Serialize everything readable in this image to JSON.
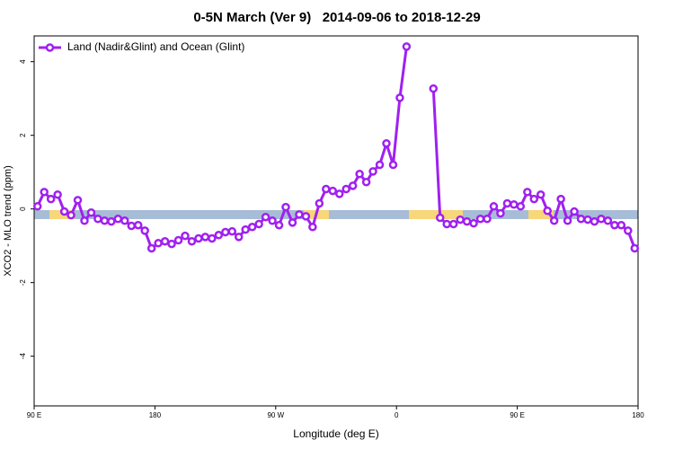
{
  "chart_data": {
    "type": "line",
    "title": "0-5N March (Ver 9)   2014-09-06 to 2018-12-29",
    "x_label": "Longitude (deg E)",
    "y_label": "XCO2 - MLO trend (ppm)",
    "xlim": [
      90,
      540
    ],
    "xticks": [
      {
        "value": 90,
        "label": "90 E"
      },
      180,
      {
        "value": 270,
        "label": "90 W"
      },
      {
        "value": 360,
        "label": "0"
      },
      {
        "value": 450,
        "label": "90 E"
      },
      {
        "value": 540,
        "label": "180"
      }
    ],
    "ylim": [
      -5.35,
      4.7
    ],
    "yticks": [
      -4,
      -2,
      0,
      2,
      4
    ],
    "legend": "top-left",
    "x": [
      92.5,
      97.5,
      102.5,
      107.5,
      112.5,
      117.5,
      122.5,
      127.5,
      132.5,
      137.5,
      142.5,
      147.5,
      152.5,
      157.5,
      162.5,
      167.5,
      172.5,
      177.5,
      182.5,
      187.5,
      192.5,
      197.5,
      202.5,
      207.5,
      212.5,
      217.5,
      222.5,
      227.5,
      232.5,
      237.5,
      242.5,
      247.5,
      252.5,
      257.5,
      262.5,
      267.5,
      272.5,
      277.5,
      282.5,
      287.5,
      292.5,
      297.5,
      302.5,
      307.5,
      312.5,
      317.5,
      322.5,
      327.5,
      332.5,
      337.5,
      342.5,
      347.5,
      352.5,
      357.5,
      362.5,
      367.5,
      372.5,
      377.5,
      382.5,
      387.5,
      392.5,
      397.5,
      402.5,
      407.5,
      412.5,
      417.5,
      422.5,
      427.5,
      432.5,
      437.5,
      442.5,
      447.5,
      452.5,
      457.5,
      462.5,
      467.5,
      472.5,
      477.5,
      482.5,
      487.5,
      492.5,
      497.5,
      502.5,
      507.5,
      512.5,
      517.5,
      522.5,
      527.5,
      532.5,
      537.5
    ],
    "series": [
      {
        "name": "Land (Nadir&Glint) and Ocean (Glint)",
        "color": "#a020f0",
        "values": [
          0.07,
          0.46,
          0.27,
          0.39,
          -0.07,
          -0.17,
          0.24,
          -0.32,
          -0.1,
          -0.27,
          -0.32,
          -0.34,
          -0.27,
          -0.32,
          -0.46,
          -0.44,
          -0.59,
          -1.07,
          -0.93,
          -0.88,
          -0.95,
          -0.85,
          -0.73,
          -0.88,
          -0.8,
          -0.76,
          -0.8,
          -0.71,
          -0.63,
          -0.61,
          -0.76,
          -0.56,
          -0.49,
          -0.41,
          -0.22,
          -0.32,
          -0.44,
          0.05,
          -0.37,
          -0.15,
          -0.2,
          -0.49,
          0.15,
          0.54,
          0.49,
          0.41,
          0.54,
          0.63,
          0.95,
          0.73,
          1.02,
          1.2,
          1.78,
          1.2,
          3.02,
          4.41,
          null,
          null,
          null,
          3.27,
          -0.24,
          -0.41,
          -0.41,
          -0.29,
          -0.34,
          -0.39,
          -0.27,
          -0.27,
          0.07,
          -0.12,
          0.15,
          0.12,
          0.07,
          0.46,
          0.27,
          0.39,
          -0.05,
          -0.32,
          0.27,
          -0.32,
          -0.07,
          -0.27,
          -0.29,
          -0.34,
          -0.27,
          -0.32,
          -0.44,
          -0.44,
          -0.59,
          -1.07
        ]
      }
    ]
  }
}
